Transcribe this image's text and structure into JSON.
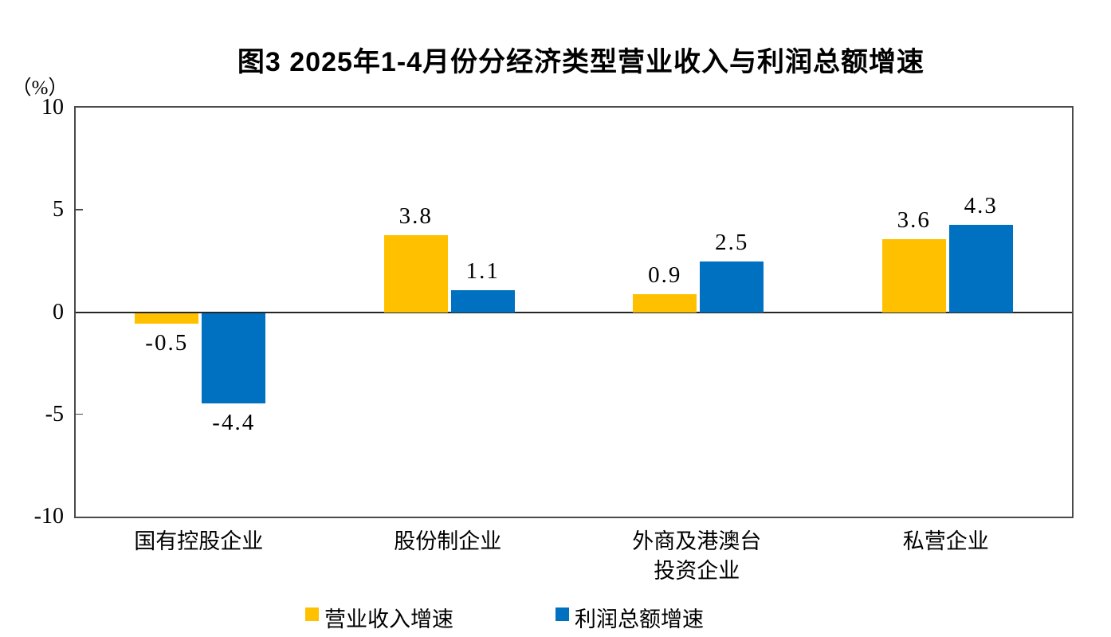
{
  "title": "图3 2025年1-4月份分经济类型营业收入与利润总额增速",
  "unit_label": "（%）",
  "colors": {
    "revenue_series": "#FFC000",
    "profit_series": "#0070C0",
    "axis_border": "#4a4a4a",
    "zero_line": "#262626",
    "text": "#000000",
    "background": "#ffffff"
  },
  "chart_data": {
    "type": "bar",
    "title": "图3 2025年1-4月份分经济类型营业收入与利润总额增速",
    "ylabel": "（%）",
    "categories": [
      "国有控股企业",
      "股份制企业",
      "外商及港澳台\n投资企业",
      "私营企业"
    ],
    "series": [
      {
        "name": "营业收入增速",
        "color": "#FFC000",
        "values": [
          -0.5,
          3.8,
          0.9,
          3.6
        ]
      },
      {
        "name": "利润总额增速",
        "color": "#0070C0",
        "values": [
          -4.4,
          1.1,
          2.5,
          4.3
        ]
      }
    ],
    "value_labels": [
      "-0.5",
      "-4.4",
      "3.8",
      "1.1",
      "0.9",
      "2.5",
      "3.6",
      "4.3"
    ],
    "ylim": [
      -10,
      10
    ],
    "yticks": [
      10,
      5,
      0,
      -5,
      -10
    ],
    "grid": false,
    "zero_baseline": true,
    "legend_position": "bottom"
  }
}
